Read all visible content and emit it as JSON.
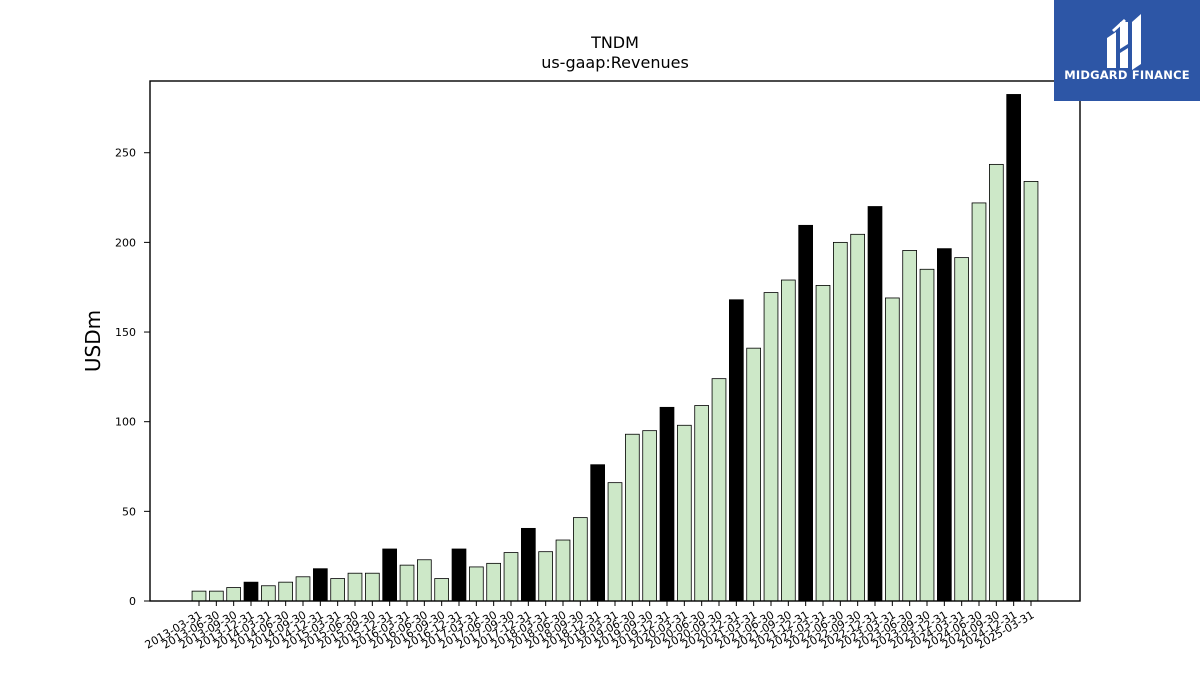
{
  "logo": {
    "brand": "MIDGARD FINANCE",
    "icon": "midgard-logo-icon",
    "background": "#2d56a6"
  },
  "chart_data": {
    "type": "bar",
    "title": "TNDM",
    "subtitle": "us-gaap:Revenues",
    "xlabel": "",
    "ylabel": "USDm",
    "ylim": [
      0,
      290
    ],
    "yticks": [
      0,
      50,
      100,
      150,
      200,
      250
    ],
    "grid": false,
    "legend": "none",
    "colors": {
      "quarter": "#cde8c8",
      "q4": "#000000",
      "edge": "#000000"
    },
    "categories": [
      "2013-03-31",
      "2013-06-30",
      "2013-09-30",
      "2013-12-31",
      "2014-03-31",
      "2014-06-30",
      "2014-09-30",
      "2014-12-31",
      "2015-03-31",
      "2015-06-30",
      "2015-09-30",
      "2015-12-31",
      "2016-03-31",
      "2016-06-30",
      "2016-09-30",
      "2016-12-31",
      "2017-03-31",
      "2017-06-30",
      "2017-09-30",
      "2017-12-31",
      "2018-03-31",
      "2018-06-30",
      "2018-09-30",
      "2018-12-31",
      "2019-03-31",
      "2019-06-30",
      "2019-09-30",
      "2019-12-31",
      "2020-03-31",
      "2020-06-30",
      "2020-09-30",
      "2020-12-31",
      "2021-03-31",
      "2021-06-30",
      "2021-09-30",
      "2021-12-31",
      "2022-03-31",
      "2022-06-30",
      "2022-09-30",
      "2022-12-31",
      "2023-03-31",
      "2023-06-30",
      "2023-09-30",
      "2023-12-31",
      "2024-03-31",
      "2024-06-30",
      "2024-09-30",
      "2024-12-31",
      "2025-03-31"
    ],
    "values": [
      5.5,
      5.5,
      7.5,
      10.5,
      8.5,
      10.5,
      13.5,
      18,
      12.5,
      15.5,
      15.5,
      29,
      20,
      23,
      12.5,
      29,
      19,
      21,
      27,
      40.5,
      27.5,
      34,
      46.5,
      76,
      66,
      93,
      95,
      108,
      98,
      109,
      124,
      168,
      141,
      172,
      179,
      209.5,
      176,
      200,
      204.5,
      220,
      169,
      195.5,
      185,
      196.5,
      191.5,
      222,
      243.5,
      282.5,
      234
    ],
    "highlight": [
      false,
      false,
      false,
      true,
      false,
      false,
      false,
      true,
      false,
      false,
      false,
      true,
      false,
      false,
      false,
      true,
      false,
      false,
      false,
      true,
      false,
      false,
      false,
      true,
      false,
      false,
      false,
      true,
      false,
      false,
      false,
      true,
      false,
      false,
      false,
      true,
      false,
      false,
      false,
      true,
      false,
      false,
      false,
      true,
      false,
      false,
      false,
      true,
      false
    ]
  }
}
